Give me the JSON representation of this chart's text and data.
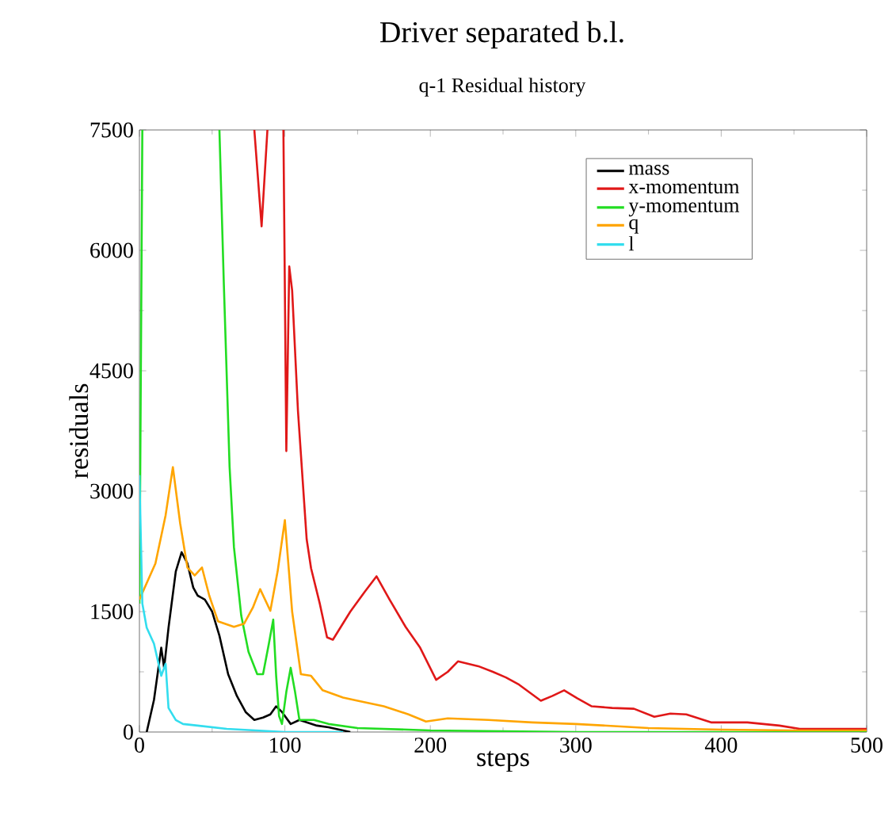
{
  "chart_data": {
    "type": "line",
    "title": "Driver separated b.l.",
    "subtitle": "q-1 Residual history",
    "xlabel": "steps",
    "ylabel": "residuals",
    "xlim": [
      0,
      500
    ],
    "ylim": [
      0,
      7500
    ],
    "xticks": [
      0,
      100,
      200,
      300,
      400,
      500
    ],
    "yticks": [
      0,
      1500,
      3000,
      4500,
      6000,
      7500
    ],
    "grid": false,
    "legend": "top right",
    "marker": "none",
    "line_style": "solid",
    "series": [
      {
        "name": "mass",
        "color": "#000000",
        "x": [
          5,
          10,
          15,
          17,
          20,
          25,
          29,
          33,
          37,
          40,
          45,
          50,
          55,
          61,
          67,
          73,
          79,
          85,
          90,
          94,
          98,
          104,
          110,
          115,
          122,
          130,
          140,
          145
        ],
        "values": [
          0,
          400,
          1050,
          800,
          1300,
          2000,
          2240,
          2100,
          1800,
          1700,
          1650,
          1500,
          1200,
          720,
          450,
          250,
          150,
          180,
          220,
          320,
          250,
          100,
          150,
          120,
          80,
          60,
          20,
          0
        ]
      },
      {
        "name": "x-momentum",
        "color": "#e01818",
        "x": [
          79,
          84,
          88,
          92,
          99,
          101,
          103,
          105,
          109,
          115,
          118,
          124,
          129,
          133,
          145,
          155,
          163,
          172,
          183,
          193,
          204,
          212,
          219,
          233,
          243,
          252,
          261,
          276,
          284,
          292,
          301,
          311,
          325,
          340,
          354,
          365,
          376,
          393,
          418,
          440,
          454,
          489,
          500
        ],
        "values": [
          7500,
          6300,
          7500,
          null,
          7500,
          3500,
          5800,
          5500,
          4000,
          2400,
          2040,
          1600,
          1180,
          1150,
          1500,
          1750,
          1940,
          1650,
          1310,
          1050,
          650,
          750,
          880,
          820,
          750,
          680,
          590,
          390,
          450,
          520,
          420,
          320,
          300,
          290,
          190,
          230,
          220,
          120,
          120,
          80,
          40,
          40,
          40
        ]
      },
      {
        "name": "y-momentum",
        "color": "#22dd22",
        "x": [
          0,
          2,
          30,
          55,
          58,
          62,
          65,
          70,
          75,
          81,
          85,
          89,
          92,
          94,
          96,
          98,
          101,
          104,
          107,
          110,
          120,
          130,
          150,
          200,
          300,
          400,
          500
        ],
        "values": [
          1600,
          7500,
          null,
          7500,
          5600,
          3300,
          2300,
          1450,
          1000,
          720,
          720,
          1100,
          1400,
          700,
          200,
          100,
          500,
          800,
          500,
          150,
          150,
          100,
          50,
          20,
          0,
          0,
          0
        ]
      },
      {
        "name": "q",
        "color": "#ffa500",
        "x": [
          0,
          11,
          18,
          23,
          28,
          33,
          38,
          43,
          48,
          54,
          65,
          72,
          78,
          83,
          90,
          95,
          100,
          105,
          111,
          118,
          126,
          140,
          150,
          168,
          185,
          197,
          212,
          240,
          270,
          300,
          350,
          400,
          450,
          500
        ],
        "values": [
          1650,
          2100,
          2700,
          3300,
          2600,
          2050,
          1950,
          2050,
          1700,
          1380,
          1310,
          1350,
          1550,
          1780,
          1510,
          2000,
          2640,
          1500,
          720,
          700,
          520,
          430,
          390,
          320,
          220,
          130,
          170,
          150,
          120,
          100,
          50,
          30,
          20,
          20
        ]
      },
      {
        "name": "l",
        "color": "#33ddee",
        "x": [
          0,
          2,
          5,
          10,
          15,
          18,
          20,
          25,
          30,
          40,
          60,
          80,
          100,
          120,
          140
        ],
        "values": [
          3200,
          1600,
          1300,
          1100,
          700,
          850,
          300,
          150,
          100,
          80,
          40,
          20,
          0,
          0,
          0
        ]
      }
    ]
  }
}
